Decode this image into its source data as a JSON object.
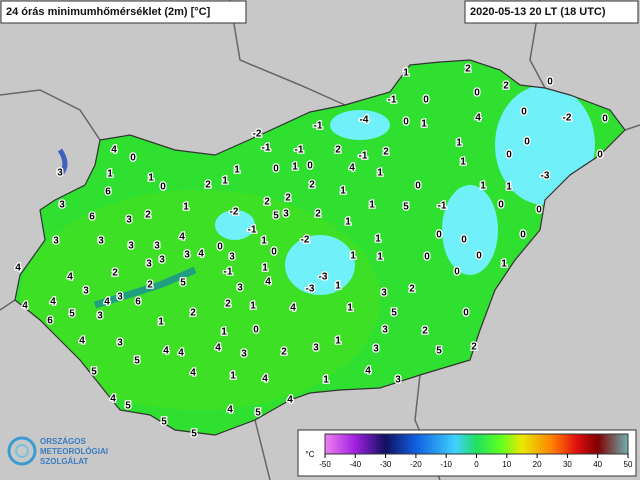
{
  "header": {
    "title": "24 órás minimumhőmérséklet (2m) [°C]",
    "timestamp": "2020-05-13 20 LT (18 UTC)"
  },
  "logo": {
    "lines": [
      "ORSZÁGOS",
      "METEOROLÓGIAI",
      "SZOLGÁLAT"
    ]
  },
  "legend": {
    "unit": "°C",
    "ticks": [
      -50,
      -40,
      -30,
      -20,
      -10,
      0,
      10,
      20,
      30,
      40,
      50
    ]
  },
  "stations": [
    1,
    2,
    0,
    -1,
    0,
    2,
    0,
    -4,
    0,
    1,
    4,
    0,
    -2,
    0,
    -1,
    -2,
    -1,
    -1,
    2,
    -1,
    2,
    1,
    0,
    0,
    0,
    4,
    1,
    1,
    -3,
    4,
    0,
    1,
    1,
    0,
    2,
    1,
    1,
    1,
    0,
    0,
    3,
    6,
    3,
    1,
    2,
    2,
    2,
    1,
    1,
    0,
    1,
    1,
    5,
    -1,
    0,
    0,
    -2,
    5,
    3,
    2,
    6,
    3,
    2,
    1,
    -1,
    4,
    0,
    1,
    -2,
    1,
    0,
    0,
    0,
    3,
    3,
    3,
    3,
    3,
    0,
    1,
    1,
    0,
    0,
    1,
    4,
    4,
    2,
    3,
    3,
    3,
    4,
    -1,
    1,
    0,
    -3,
    2,
    5,
    3,
    4,
    1,
    2,
    3,
    -3,
    4,
    3,
    4,
    3,
    6,
    3,
    4,
    1,
    2,
    2,
    1,
    4,
    1,
    5,
    0,
    6,
    5,
    4,
    3,
    4,
    1,
    0,
    3,
    1,
    3,
    2,
    5,
    4,
    2,
    4,
    3,
    2,
    3,
    5,
    5,
    4,
    1,
    4,
    1,
    4,
    3,
    4,
    5,
    5,
    5,
    4,
    5,
    4
  ]
}
